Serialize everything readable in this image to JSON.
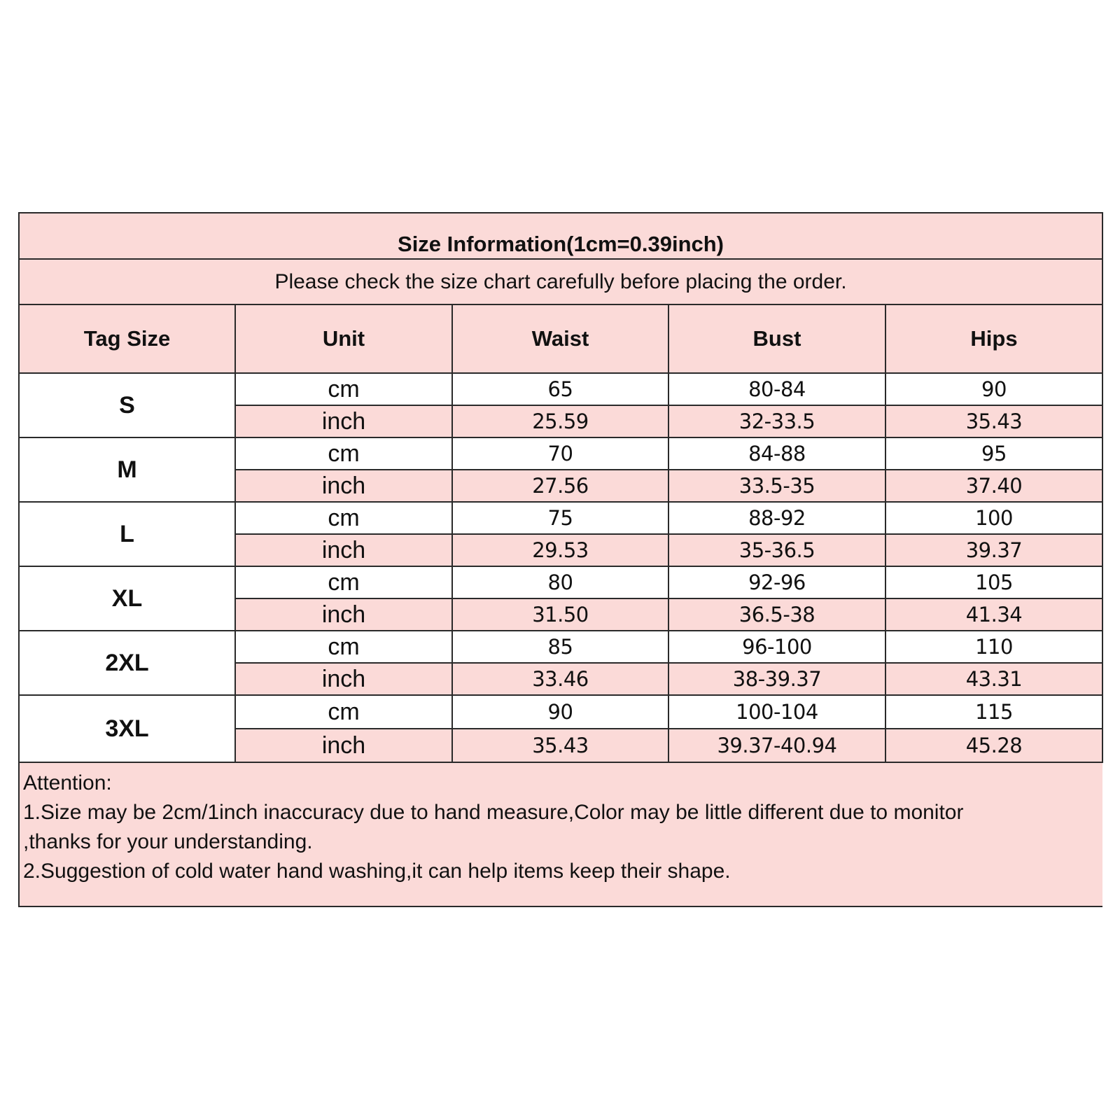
{
  "title": "Size Information(1cm=0.39inch)",
  "subtitle": "Please check the size chart carefully before placing the order.",
  "headers": [
    "Tag Size",
    "Unit",
    "Waist",
    "Bust",
    "Hips"
  ],
  "rows": [
    {
      "tag": "S",
      "cm": {
        "unit": "cm",
        "waist": "65",
        "bust": "80-84",
        "hips": "90"
      },
      "inch": {
        "unit": "inch",
        "waist": "25.59",
        "bust": "32-33.5",
        "hips": "35.43"
      }
    },
    {
      "tag": "M",
      "cm": {
        "unit": "cm",
        "waist": "70",
        "bust": "84-88",
        "hips": "95"
      },
      "inch": {
        "unit": "inch",
        "waist": "27.56",
        "bust": "33.5-35",
        "hips": "37.40"
      }
    },
    {
      "tag": "L",
      "cm": {
        "unit": "cm",
        "waist": "75",
        "bust": "88-92",
        "hips": "100"
      },
      "inch": {
        "unit": "inch",
        "waist": "29.53",
        "bust": "35-36.5",
        "hips": "39.37"
      }
    },
    {
      "tag": "XL",
      "cm": {
        "unit": "cm",
        "waist": "80",
        "bust": "92-96",
        "hips": "105"
      },
      "inch": {
        "unit": "inch",
        "waist": "31.50",
        "bust": "36.5-38",
        "hips": "41.34"
      }
    },
    {
      "tag": "2XL",
      "cm": {
        "unit": "cm",
        "waist": "85",
        "bust": "96-100",
        "hips": "110"
      },
      "inch": {
        "unit": "inch",
        "waist": "33.46",
        "bust": "38-39.37",
        "hips": "43.31"
      }
    },
    {
      "tag": "3XL",
      "cm": {
        "unit": "cm",
        "waist": "90",
        "bust": "100-104",
        "hips": "115"
      },
      "inch": {
        "unit": "inch",
        "waist": "35.43",
        "bust": "39.37-40.94",
        "hips": "45.28"
      }
    }
  ],
  "notes": [
    "Attention:",
    "1.Size may be 2cm/1inch inaccuracy due to hand measure,Color may be little different due to monitor",
    ",thanks for your understanding.",
    "2.Suggestion of cold water hand washing,it can help items keep their shape."
  ],
  "colors": {
    "header_bg": "#fbdad8",
    "border": "#2a2a2a"
  }
}
